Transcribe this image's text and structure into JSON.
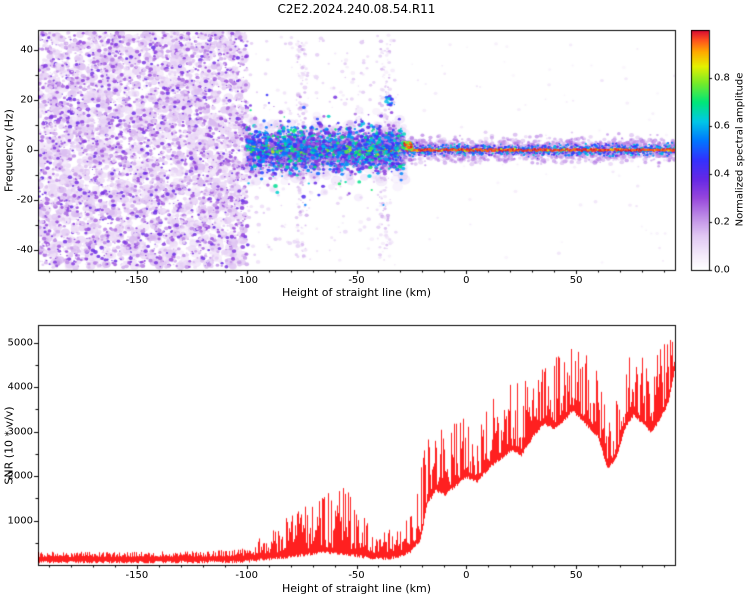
{
  "title": "C2E2.2024.240.08.54.R11",
  "colorbar_label": "Normalized spectral amplitude",
  "chart_data": [
    {
      "type": "heatmap",
      "title": "C2E2.2024.240.08.54.R11",
      "xlabel": "Height of straight line (km)",
      "ylabel": "Frequency (Hz)",
      "xlim": [
        -195,
        95
      ],
      "ylim": [
        -48,
        48
      ],
      "xticks": [
        -150,
        -100,
        -50,
        0,
        50
      ],
      "xtick_labels": [
        "-150",
        "-100",
        "-50",
        "0",
        "50"
      ],
      "yticks": [
        40,
        20,
        0,
        -20,
        -40
      ],
      "ytick_labels": [
        "40",
        "20",
        "0",
        "-20",
        "-40"
      ],
      "grid": false,
      "colorbar": {
        "label": "Normalized spectral amplitude",
        "range": [
          0,
          1
        ],
        "ticks": [
          0,
          0.2,
          0.4,
          0.6,
          0.8
        ],
        "tick_labels": [
          "0.0",
          "0.2",
          "0.4",
          "0.6",
          "0.8"
        ]
      },
      "colormap_stops": [
        [
          0.0,
          255,
          255,
          255
        ],
        [
          0.06,
          244,
          234,
          250
        ],
        [
          0.14,
          225,
          200,
          243
        ],
        [
          0.22,
          190,
          140,
          230
        ],
        [
          0.3,
          150,
          70,
          220
        ],
        [
          0.38,
          100,
          40,
          230
        ],
        [
          0.46,
          50,
          50,
          255
        ],
        [
          0.54,
          0,
          120,
          255
        ],
        [
          0.62,
          0,
          200,
          230
        ],
        [
          0.7,
          0,
          230,
          120
        ],
        [
          0.78,
          120,
          235,
          40
        ],
        [
          0.85,
          230,
          240,
          0
        ],
        [
          0.91,
          255,
          170,
          0
        ],
        [
          0.96,
          255,
          80,
          30
        ],
        [
          1.0,
          215,
          10,
          50
        ]
      ],
      "regions": [
        {
          "name": "broadband-noise",
          "x_range": [
            -195,
            -100
          ],
          "freq_range": [
            -48,
            48
          ],
          "amplitude_range": [
            0.05,
            0.38
          ],
          "pattern": "dense random purple speckle noise"
        },
        {
          "name": "pre-lock-band",
          "x_range": [
            -100,
            -30
          ],
          "freq_range": [
            -15,
            15
          ],
          "center_freq": 0,
          "amplitude_range": [
            0.2,
            0.88
          ],
          "pattern": "noisy concentrated band around 0 Hz, purple-blue with cyan/green peaks"
        },
        {
          "name": "carrier-line",
          "x_range": [
            -30,
            95
          ],
          "freq_range": [
            -5,
            5
          ],
          "center_freq": 0,
          "amplitude_range": [
            0.85,
            1.0
          ],
          "pattern": "narrow intense line at 0 Hz, red core with green-blue-purple halo"
        },
        {
          "name": "faint-vertical-streaks",
          "x_positions": [
            -75,
            -37
          ],
          "freq_range": [
            -45,
            45
          ],
          "amplitude_range": [
            0.05,
            0.2
          ],
          "pattern": "sparse faint purple columns"
        }
      ]
    },
    {
      "type": "line",
      "xlabel": "Height of straight line (km)",
      "ylabel": "SNR (10 * v/v)",
      "xlim": [
        -195,
        95
      ],
      "ylim": [
        0,
        5400
      ],
      "xticks": [
        -150,
        -100,
        -50,
        0,
        50
      ],
      "xtick_labels": [
        "-150",
        "-100",
        "-50",
        "0",
        "50"
      ],
      "yticks": [
        1000,
        2000,
        3000,
        4000,
        5000
      ],
      "ytick_labels": [
        "1000",
        "2000",
        "3000",
        "4000",
        "5000"
      ],
      "grid": false,
      "series": [
        {
          "name": "SNR",
          "color": "#ff2020",
          "envelope": {
            "x": [
              -195,
              -160,
              -120,
              -103,
              -95,
              -85,
              -75,
              -65,
              -57,
              -50,
              -44,
              -38,
              -32,
              -26,
              -21,
              -18,
              -14,
              -10,
              -5,
              0,
              5,
              10,
              15,
              20,
              25,
              30,
              35,
              40,
              45,
              48,
              52,
              56,
              60,
              64,
              68,
              72,
              76,
              80,
              84,
              88,
              92,
              95
            ],
            "base": [
              180,
              180,
              190,
              200,
              230,
              280,
              350,
              400,
              380,
              330,
              280,
              260,
              300,
              400,
              700,
              1500,
              1800,
              1700,
              1900,
              2100,
              2000,
              2300,
              2500,
              2700,
              2600,
              3000,
              3300,
              3200,
              3400,
              3600,
              3400,
              3200,
              3000,
              2300,
              2500,
              3200,
              3500,
              3300,
              3100,
              3400,
              3800,
              4600
            ],
            "spike": [
              120,
              120,
              130,
              150,
              350,
              700,
              900,
              1300,
              1500,
              1000,
              700,
              500,
              600,
              800,
              1500,
              1700,
              1500,
              1400,
              1400,
              1300,
              1500,
              1400,
              1300,
              1400,
              1500,
              1400,
              1200,
              1500,
              1400,
              1400,
              1400,
              1600,
              1500,
              900,
              1200,
              1400,
              1300,
              1400,
              1300,
              1500,
              1400,
              700
            ]
          }
        }
      ]
    }
  ]
}
